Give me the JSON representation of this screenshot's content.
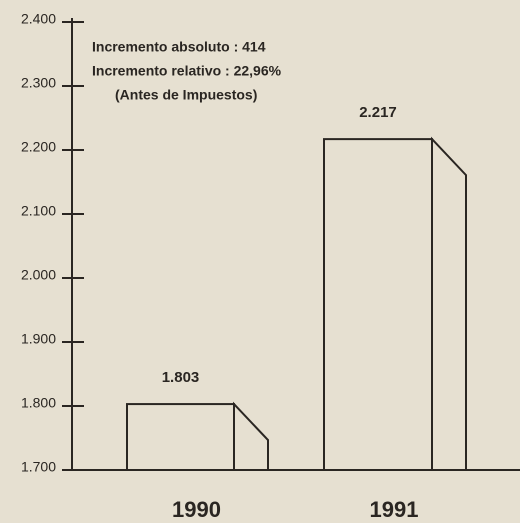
{
  "chart_data": {
    "type": "bar",
    "annotations": [
      "Incremento absoluto : 414",
      "Incremento relativo : 22,96%",
      "(Antes de Impuestos)"
    ],
    "categories": [
      "1990",
      "1991"
    ],
    "values": [
      1803,
      2217
    ],
    "value_labels": [
      "1.803",
      "2.217"
    ],
    "color": "#2a2622",
    "ylim": [
      1700,
      2400
    ],
    "yticks": [
      {
        "value": 1700,
        "label": "1.700"
      },
      {
        "value": 1800,
        "label": "1.800"
      },
      {
        "value": 1900,
        "label": "1.900"
      },
      {
        "value": 2000,
        "label": "2.000"
      },
      {
        "value": 2100,
        "label": "2.100"
      },
      {
        "value": 2200,
        "label": "2.200"
      },
      {
        "value": 2300,
        "label": "2.300"
      },
      {
        "value": 2400,
        "label": "2.400"
      }
    ]
  }
}
